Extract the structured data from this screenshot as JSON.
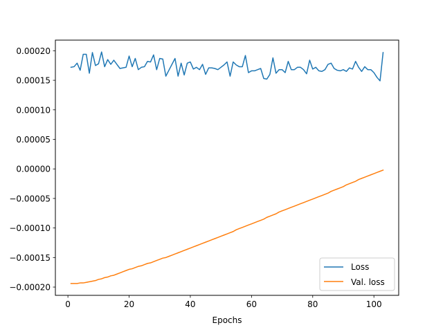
{
  "chart_data": {
    "type": "line",
    "title": "",
    "xlabel": "Epochs",
    "ylabel": "",
    "xlim": [
      -4.1,
      108.1
    ],
    "ylim": [
      -0.000214,
      0.000218
    ],
    "grid": false,
    "legend_position": "bottom-right",
    "x_ticks": [
      0,
      20,
      40,
      60,
      80,
      100
    ],
    "x_tick_labels": [
      "0",
      "20",
      "40",
      "60",
      "80",
      "100"
    ],
    "y_ticks": [
      -0.0002,
      -0.00015,
      -0.0001,
      -5e-05,
      0,
      5e-05,
      0.0001,
      0.00015,
      0.0002
    ],
    "y_tick_labels": [
      "−0.00020",
      "−0.00015",
      "−0.00010",
      "−0.00005",
      "0.00000",
      "0.00005",
      "0.00010",
      "0.00015",
      "0.00020"
    ],
    "series": [
      {
        "name": "Loss",
        "color": "#1f77b4",
        "x": [
          1,
          2,
          3,
          4,
          5,
          6,
          7,
          8,
          9,
          10,
          11,
          12,
          13,
          14,
          15,
          16,
          17,
          18,
          19,
          20,
          21,
          22,
          23,
          24,
          25,
          26,
          27,
          28,
          29,
          30,
          31,
          32,
          33,
          34,
          35,
          36,
          37,
          38,
          39,
          40,
          41,
          42,
          43,
          44,
          45,
          46,
          47,
          48,
          49,
          50,
          51,
          52,
          53,
          54,
          55,
          56,
          57,
          58,
          59,
          60,
          61,
          62,
          63,
          64,
          65,
          66,
          67,
          68,
          69,
          70,
          71,
          72,
          73,
          74,
          75,
          76,
          77,
          78,
          79,
          80,
          81,
          82,
          83,
          84,
          85,
          86,
          87,
          88,
          89,
          90,
          91,
          92,
          93,
          94,
          95,
          96,
          97,
          98,
          99,
          100,
          101,
          102,
          103
        ],
        "y": [
          0.000172,
          0.000173,
          0.000179,
          0.000167,
          0.000194,
          0.000194,
          0.000162,
          0.000197,
          0.000175,
          0.000178,
          0.000198,
          0.000173,
          0.000185,
          0.000177,
          0.000184,
          0.000177,
          0.00017,
          0.000171,
          0.000172,
          0.000191,
          0.000173,
          0.000187,
          0.000168,
          0.000172,
          0.000173,
          0.000182,
          0.000181,
          0.000193,
          0.000168,
          0.000187,
          0.000186,
          0.000157,
          0.000167,
          0.000177,
          0.000187,
          0.000157,
          0.000179,
          0.000159,
          0.000179,
          0.000181,
          0.000169,
          0.000172,
          0.000168,
          0.000177,
          0.00016,
          0.000171,
          0.000171,
          0.00017,
          0.000168,
          0.000172,
          0.000176,
          0.000181,
          0.000157,
          0.000181,
          0.000176,
          0.000173,
          0.000173,
          0.000192,
          0.000163,
          0.000166,
          0.000166,
          0.000168,
          0.00017,
          0.000153,
          0.000152,
          0.00016,
          0.000188,
          0.000162,
          0.000168,
          0.000168,
          0.000163,
          0.000182,
          0.000168,
          0.000168,
          0.000172,
          0.000172,
          0.000168,
          0.000161,
          0.000184,
          0.000169,
          0.000172,
          0.000166,
          0.000165,
          0.000168,
          0.000177,
          0.000179,
          0.00017,
          0.000167,
          0.000166,
          0.000168,
          0.000165,
          0.000171,
          0.000169,
          0.000182,
          0.000172,
          0.000165,
          0.000173,
          0.000168,
          0.000168,
          0.000163,
          0.000155,
          0.000149,
          0.000197
        ]
      },
      {
        "name": "Val. loss",
        "color": "#ff7f0e",
        "x": [
          1,
          2,
          3,
          4,
          5,
          6,
          7,
          8,
          9,
          10,
          11,
          12,
          13,
          14,
          15,
          16,
          17,
          18,
          19,
          20,
          21,
          22,
          23,
          24,
          25,
          26,
          27,
          28,
          29,
          30,
          31,
          32,
          33,
          34,
          35,
          36,
          37,
          38,
          39,
          40,
          41,
          42,
          43,
          44,
          45,
          46,
          47,
          48,
          49,
          50,
          51,
          52,
          53,
          54,
          55,
          56,
          57,
          58,
          59,
          60,
          61,
          62,
          63,
          64,
          65,
          66,
          67,
          68,
          69,
          70,
          71,
          72,
          73,
          74,
          75,
          76,
          77,
          78,
          79,
          80,
          81,
          82,
          83,
          84,
          85,
          86,
          87,
          88,
          89,
          90,
          91,
          92,
          93,
          94,
          95,
          96,
          97,
          98,
          99,
          100,
          101,
          102,
          103
        ],
        "y": [
          -0.000194,
          -0.000194,
          -0.000194,
          -0.000193,
          -0.000193,
          -0.000192,
          -0.000191,
          -0.00019,
          -0.000189,
          -0.000187,
          -0.000186,
          -0.000184,
          -0.000183,
          -0.000181,
          -0.00018,
          -0.000178,
          -0.000176,
          -0.000174,
          -0.000172,
          -0.00017,
          -0.000169,
          -0.000167,
          -0.000165,
          -0.000164,
          -0.000162,
          -0.00016,
          -0.000159,
          -0.000157,
          -0.000155,
          -0.000153,
          -0.000151,
          -0.00015,
          -0.000148,
          -0.000146,
          -0.000144,
          -0.000142,
          -0.00014,
          -0.000138,
          -0.000136,
          -0.000134,
          -0.000132,
          -0.00013,
          -0.000128,
          -0.000126,
          -0.000124,
          -0.000122,
          -0.00012,
          -0.000118,
          -0.000116,
          -0.000114,
          -0.000112,
          -0.00011,
          -0.000108,
          -0.000106,
          -0.000103,
          -0.000101,
          -9.9e-05,
          -9.7e-05,
          -9.5e-05,
          -9.3e-05,
          -9.1e-05,
          -8.9e-05,
          -8.7e-05,
          -8.5e-05,
          -8.2e-05,
          -8e-05,
          -7.8e-05,
          -7.6e-05,
          -7.3e-05,
          -7.1e-05,
          -6.9e-05,
          -6.7e-05,
          -6.5e-05,
          -6.3e-05,
          -6.1e-05,
          -5.9e-05,
          -5.7e-05,
          -5.5e-05,
          -5.3e-05,
          -5.1e-05,
          -4.9e-05,
          -4.7e-05,
          -4.5e-05,
          -4.3e-05,
          -4.1e-05,
          -3.8e-05,
          -3.6e-05,
          -3.4e-05,
          -3.2e-05,
          -3e-05,
          -2.7e-05,
          -2.5e-05,
          -2.3e-05,
          -2.1e-05,
          -1.8e-05,
          -1.6e-05,
          -1.4e-05,
          -1.2e-05,
          -1e-05,
          -8e-06,
          -6e-06,
          -4e-06,
          -2e-06
        ]
      }
    ]
  }
}
